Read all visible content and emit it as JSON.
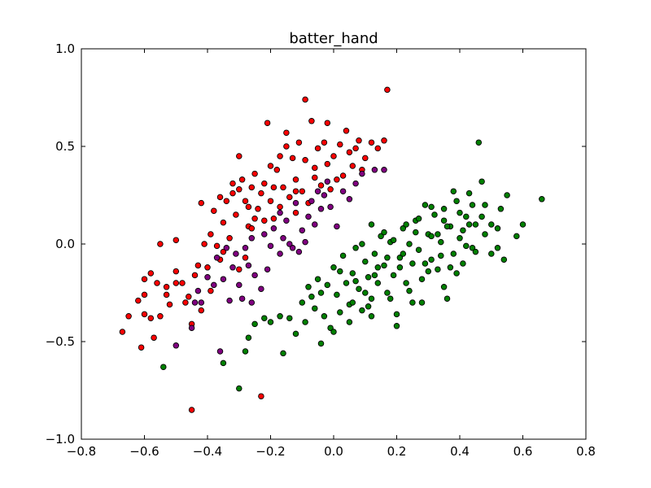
{
  "chart_data": {
    "type": "scatter",
    "title": "batter_hand",
    "xlabel": "",
    "ylabel": "",
    "xlim": [
      -0.8,
      0.8
    ],
    "ylim": [
      -1.0,
      1.0
    ],
    "xticks": [
      -0.8,
      -0.6,
      -0.4,
      -0.2,
      0.0,
      0.2,
      0.4,
      0.6,
      0.8
    ],
    "yticks": [
      -1.0,
      -0.5,
      0.0,
      0.5,
      1.0
    ],
    "xtick_labels": [
      "−0.8",
      "−0.6",
      "−0.4",
      "−0.2",
      "0.0",
      "0.2",
      "0.4",
      "0.6",
      "0.8"
    ],
    "ytick_labels": [
      "−1.0",
      "−0.5",
      "0.0",
      "0.5",
      "1.0"
    ],
    "grid": false,
    "series": [
      {
        "color": "#ff0000",
        "points": [
          [
            -0.67,
            -0.45
          ],
          [
            -0.65,
            -0.37
          ],
          [
            -0.62,
            -0.29
          ],
          [
            -0.61,
            -0.53
          ],
          [
            -0.6,
            -0.36
          ],
          [
            -0.6,
            -0.26
          ],
          [
            -0.6,
            -0.18
          ],
          [
            -0.58,
            -0.38
          ],
          [
            -0.57,
            -0.48
          ],
          [
            -0.56,
            -0.2
          ],
          [
            -0.55,
            -0.37
          ],
          [
            -0.55,
            0.0
          ],
          [
            -0.53,
            -0.22
          ],
          [
            -0.52,
            -0.31
          ],
          [
            -0.5,
            -0.14
          ],
          [
            -0.5,
            0.02
          ],
          [
            -0.48,
            -0.2
          ],
          [
            -0.46,
            -0.27
          ],
          [
            -0.45,
            -0.41
          ],
          [
            -0.45,
            -0.85
          ],
          [
            -0.43,
            -0.11
          ],
          [
            -0.42,
            -0.34
          ],
          [
            -0.4,
            -0.12
          ],
          [
            -0.39,
            0.05
          ],
          [
            -0.38,
            0.17
          ],
          [
            -0.37,
            -0.01
          ],
          [
            -0.36,
            0.24
          ],
          [
            -0.35,
            0.11
          ],
          [
            -0.34,
            0.22
          ],
          [
            -0.33,
            0.03
          ],
          [
            -0.32,
            0.31
          ],
          [
            -0.31,
            0.15
          ],
          [
            -0.3,
            0.45
          ],
          [
            -0.3,
            0.28
          ],
          [
            -0.29,
            0.33
          ],
          [
            -0.28,
            0.22
          ],
          [
            -0.27,
            0.09
          ],
          [
            -0.26,
            0.29
          ],
          [
            -0.25,
            0.36
          ],
          [
            -0.24,
            0.18
          ],
          [
            -0.23,
            0.26
          ],
          [
            -0.22,
            0.12
          ],
          [
            -0.22,
            0.31
          ],
          [
            -0.21,
            0.62
          ],
          [
            -0.2,
            0.4
          ],
          [
            -0.2,
            0.22
          ],
          [
            -0.19,
            0.13
          ],
          [
            -0.18,
            0.38
          ],
          [
            -0.17,
            0.19
          ],
          [
            -0.16,
            0.29
          ],
          [
            -0.15,
            0.5
          ],
          [
            -0.14,
            0.24
          ],
          [
            -0.13,
            0.44
          ],
          [
            -0.12,
            0.33
          ],
          [
            -0.11,
            0.52
          ],
          [
            -0.1,
            0.27
          ],
          [
            -0.09,
            0.43
          ],
          [
            -0.08,
            0.21
          ],
          [
            -0.07,
            0.63
          ],
          [
            -0.06,
            0.34
          ],
          [
            -0.05,
            0.49
          ],
          [
            -0.04,
            0.3
          ],
          [
            -0.03,
            0.52
          ],
          [
            -0.02,
            0.41
          ],
          [
            -0.01,
            0.28
          ],
          [
            0.0,
            0.45
          ],
          [
            0.02,
            0.51
          ],
          [
            0.03,
            0.35
          ],
          [
            0.04,
            0.58
          ],
          [
            0.05,
            0.47
          ],
          [
            0.06,
            0.4
          ],
          [
            0.08,
            0.53
          ],
          [
            0.1,
            0.44
          ],
          [
            0.12,
            0.52
          ],
          [
            0.14,
            0.49
          ],
          [
            0.16,
            0.53
          ],
          [
            0.17,
            0.79
          ],
          [
            -0.26,
            0.08
          ],
          [
            -0.28,
            -0.07
          ],
          [
            -0.35,
            -0.04
          ],
          [
            -0.41,
            0.0
          ],
          [
            -0.44,
            -0.16
          ],
          [
            -0.47,
            -0.3
          ],
          [
            -0.53,
            -0.26
          ],
          [
            -0.58,
            -0.15
          ],
          [
            -0.23,
            -0.78
          ],
          [
            -0.09,
            0.74
          ],
          [
            -0.42,
            0.21
          ],
          [
            -0.32,
            0.26
          ],
          [
            -0.27,
            0.19
          ],
          [
            -0.19,
            0.29
          ],
          [
            -0.17,
            0.45
          ],
          [
            -0.12,
            0.27
          ],
          [
            -0.06,
            0.39
          ],
          [
            0.01,
            0.33
          ],
          [
            0.07,
            0.49
          ],
          [
            0.09,
            0.38
          ],
          [
            -0.02,
            0.62
          ],
          [
            -0.15,
            0.57
          ],
          [
            -0.36,
            -0.08
          ],
          [
            -0.5,
            -0.2
          ],
          [
            -0.39,
            -0.24
          ],
          [
            -0.3,
            -0.13
          ],
          [
            -0.25,
            0.13
          ],
          [
            -0.12,
            0.16
          ]
        ]
      },
      {
        "color": "#800080",
        "points": [
          [
            -0.5,
            -0.52
          ],
          [
            -0.45,
            -0.43
          ],
          [
            -0.44,
            -0.3
          ],
          [
            -0.43,
            -0.24
          ],
          [
            -0.42,
            -0.3
          ],
          [
            -0.4,
            -0.17
          ],
          [
            -0.38,
            -0.21
          ],
          [
            -0.37,
            -0.07
          ],
          [
            -0.36,
            -0.55
          ],
          [
            -0.35,
            -0.18
          ],
          [
            -0.34,
            -0.02
          ],
          [
            -0.33,
            -0.29
          ],
          [
            -0.32,
            -0.12
          ],
          [
            -0.31,
            -0.05
          ],
          [
            -0.3,
            -0.21
          ],
          [
            -0.29,
            -0.28
          ],
          [
            -0.28,
            -0.02
          ],
          [
            -0.27,
            -0.11
          ],
          [
            -0.26,
            0.03
          ],
          [
            -0.25,
            -0.16
          ],
          [
            -0.23,
            -0.23
          ],
          [
            -0.22,
            0.05
          ],
          [
            -0.2,
            -0.01
          ],
          [
            -0.19,
            0.08
          ],
          [
            -0.17,
            0.16
          ],
          [
            -0.16,
            0.03
          ],
          [
            -0.15,
            0.12
          ],
          [
            -0.13,
            -0.02
          ],
          [
            -0.12,
            0.21
          ],
          [
            -0.1,
            0.07
          ],
          [
            -0.09,
            0.01
          ],
          [
            -0.08,
            0.14
          ],
          [
            -0.07,
            0.22
          ],
          [
            -0.06,
            0.1
          ],
          [
            -0.05,
            0.27
          ],
          [
            -0.04,
            0.18
          ],
          [
            -0.03,
            0.25
          ],
          [
            -0.02,
            0.32
          ],
          [
            -0.01,
            0.19
          ],
          [
            0.01,
            0.09
          ],
          [
            0.03,
            0.27
          ],
          [
            0.05,
            0.23
          ],
          [
            0.07,
            0.31
          ],
          [
            0.09,
            0.36
          ],
          [
            0.13,
            0.38
          ],
          [
            0.16,
            0.38
          ],
          [
            -0.21,
            -0.13
          ],
          [
            -0.17,
            -0.05
          ],
          [
            -0.14,
            0.0
          ],
          [
            -0.26,
            -0.3
          ],
          [
            -0.11,
            -0.04
          ]
        ]
      },
      {
        "color": "#008000",
        "points": [
          [
            -0.54,
            -0.63
          ],
          [
            -0.35,
            -0.61
          ],
          [
            -0.3,
            -0.74
          ],
          [
            -0.28,
            -0.55
          ],
          [
            -0.27,
            -0.48
          ],
          [
            -0.25,
            -0.41
          ],
          [
            -0.22,
            -0.38
          ],
          [
            -0.2,
            -0.4
          ],
          [
            -0.17,
            -0.37
          ],
          [
            -0.16,
            -0.56
          ],
          [
            -0.14,
            -0.38
          ],
          [
            -0.12,
            -0.46
          ],
          [
            -0.1,
            -0.3
          ],
          [
            -0.09,
            -0.4
          ],
          [
            -0.08,
            -0.22
          ],
          [
            -0.07,
            -0.27
          ],
          [
            -0.06,
            -0.33
          ],
          [
            -0.05,
            -0.18
          ],
          [
            -0.04,
            -0.25
          ],
          [
            -0.03,
            -0.37
          ],
          [
            -0.02,
            -0.21
          ],
          [
            -0.01,
            -0.43
          ],
          [
            0.0,
            -0.12
          ],
          [
            0.01,
            -0.26
          ],
          [
            0.02,
            -0.35
          ],
          [
            0.03,
            -0.06
          ],
          [
            0.04,
            -0.2
          ],
          [
            0.05,
            -0.31
          ],
          [
            0.06,
            -0.15
          ],
          [
            0.07,
            -0.02
          ],
          [
            0.08,
            -0.23
          ],
          [
            0.09,
            -0.34
          ],
          [
            0.1,
            -0.09
          ],
          [
            0.11,
            -0.17
          ],
          [
            0.12,
            -0.28
          ],
          [
            0.13,
            -0.05
          ],
          [
            0.14,
            -0.2
          ],
          [
            0.15,
            0.04
          ],
          [
            0.16,
            -0.11
          ],
          [
            0.17,
            -0.25
          ],
          [
            0.18,
            0.01
          ],
          [
            0.19,
            -0.16
          ],
          [
            0.2,
            -0.36
          ],
          [
            0.21,
            -0.07
          ],
          [
            0.22,
            0.08
          ],
          [
            0.23,
            -0.2
          ],
          [
            0.24,
            0.0
          ],
          [
            0.25,
            -0.1
          ],
          [
            0.26,
            0.12
          ],
          [
            0.27,
            -0.03
          ],
          [
            0.28,
            -0.18
          ],
          [
            0.29,
            0.2
          ],
          [
            0.3,
            0.05
          ],
          [
            0.31,
            -0.08
          ],
          [
            0.32,
            0.15
          ],
          [
            0.33,
            -0.13
          ],
          [
            0.34,
            0.01
          ],
          [
            0.35,
            0.18
          ],
          [
            0.36,
            -0.28
          ],
          [
            0.37,
            0.09
          ],
          [
            0.38,
            -0.05
          ],
          [
            0.39,
            0.22
          ],
          [
            0.4,
            0.03
          ],
          [
            0.41,
            -0.1
          ],
          [
            0.42,
            0.14
          ],
          [
            0.43,
            0.26
          ],
          [
            0.44,
            -0.02
          ],
          [
            0.45,
            0.1
          ],
          [
            0.46,
            0.52
          ],
          [
            0.47,
            0.32
          ],
          [
            0.48,
            0.2
          ],
          [
            0.5,
            0.1
          ],
          [
            0.52,
            -0.02
          ],
          [
            0.53,
            0.18
          ],
          [
            0.55,
            0.25
          ],
          [
            0.54,
            -0.08
          ],
          [
            0.58,
            0.04
          ],
          [
            0.6,
            0.1
          ],
          [
            0.66,
            0.23
          ],
          [
            -0.04,
            -0.51
          ],
          [
            0.0,
            -0.45
          ],
          [
            0.05,
            -0.4
          ],
          [
            0.12,
            -0.37
          ],
          [
            0.2,
            -0.42
          ],
          [
            0.28,
            -0.3
          ],
          [
            0.35,
            -0.22
          ],
          [
            0.25,
            -0.3
          ],
          [
            0.18,
            -0.28
          ],
          [
            0.3,
            -0.14
          ],
          [
            0.33,
            0.05
          ],
          [
            0.14,
            -0.12
          ],
          [
            0.07,
            -0.19
          ],
          [
            0.1,
            -0.25
          ],
          [
            0.22,
            -0.05
          ],
          [
            0.26,
            0.06
          ],
          [
            0.31,
            0.19
          ],
          [
            0.36,
            0.09
          ],
          [
            0.4,
            0.16
          ],
          [
            0.44,
            0.2
          ],
          [
            0.39,
            -0.15
          ],
          [
            0.42,
            -0.01
          ],
          [
            0.16,
            0.06
          ],
          [
            0.12,
            0.1
          ],
          [
            0.09,
            0.0
          ],
          [
            0.02,
            -0.14
          ],
          [
            0.06,
            -0.3
          ],
          [
            0.24,
            -0.24
          ],
          [
            0.27,
            0.13
          ],
          [
            0.34,
            -0.06
          ],
          [
            0.38,
            0.27
          ],
          [
            0.48,
            0.05
          ],
          [
            0.5,
            -0.05
          ],
          [
            0.11,
            -0.32
          ],
          [
            0.19,
            0.02
          ],
          [
            0.23,
            0.1
          ],
          [
            0.29,
            -0.1
          ],
          [
            0.37,
            -0.12
          ],
          [
            0.41,
            0.07
          ],
          [
            0.45,
            -0.04
          ],
          [
            0.13,
            -0.16
          ],
          [
            0.17,
            -0.07
          ],
          [
            0.21,
            -0.12
          ],
          [
            0.31,
            0.04
          ],
          [
            0.35,
            0.12
          ],
          [
            0.43,
            0.1
          ],
          [
            0.47,
            0.14
          ],
          [
            0.52,
            0.08
          ]
        ]
      }
    ]
  }
}
